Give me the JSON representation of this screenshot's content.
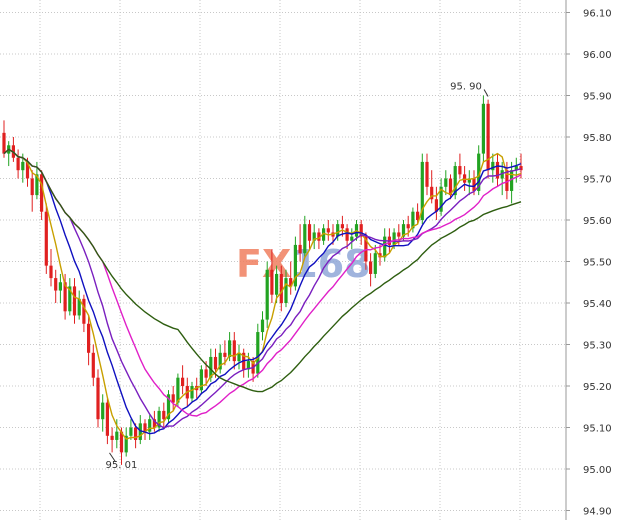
{
  "chart_data": {
    "type": "candlestick",
    "title": "",
    "xlabel": "",
    "ylabel": "",
    "ylim": [
      94.9,
      96.15
    ],
    "grid": true,
    "yticks": [
      94.9,
      95.0,
      95.1,
      95.2,
      95.3,
      95.4,
      95.5,
      95.6,
      95.7,
      95.8,
      95.9,
      96.0,
      96.1
    ],
    "ytick_labels": [
      "94.90",
      "95.00",
      "95.10",
      "95.20",
      "95.30",
      "95.40",
      "95.50",
      "95.60",
      "95.70",
      "95.80",
      "95.90",
      "96.00",
      "96.10"
    ],
    "colors": {
      "up": "#22a322",
      "down": "#e02020",
      "grid": "#c8c8c8",
      "axis": "#999999"
    },
    "watermark": {
      "text_a": "FX",
      "text_b": "168",
      "color_a": "#f08060",
      "color_b": "#90a8d8"
    },
    "annotations": [
      {
        "label": "95. 90",
        "index": 103,
        "value": 95.9
      },
      {
        "label": "95. 01",
        "index": 25,
        "value": 95.01
      }
    ],
    "candles": [
      [
        95.81,
        95.84,
        95.75,
        95.76
      ],
      [
        95.76,
        95.79,
        95.73,
        95.78
      ],
      [
        95.78,
        95.8,
        95.74,
        95.75
      ],
      [
        95.75,
        95.77,
        95.7,
        95.72
      ],
      [
        95.72,
        95.76,
        95.69,
        95.74
      ],
      [
        95.74,
        95.75,
        95.68,
        95.7
      ],
      [
        95.7,
        95.72,
        95.62,
        95.66
      ],
      [
        95.66,
        95.74,
        95.65,
        95.71
      ],
      [
        95.71,
        95.72,
        95.6,
        95.62
      ],
      [
        95.62,
        95.64,
        95.47,
        95.49
      ],
      [
        95.49,
        95.53,
        95.44,
        95.46
      ],
      [
        95.46,
        95.48,
        95.4,
        95.43
      ],
      [
        95.43,
        95.47,
        95.4,
        95.45
      ],
      [
        95.45,
        95.47,
        95.36,
        95.38
      ],
      [
        95.38,
        95.46,
        95.37,
        95.44
      ],
      [
        95.44,
        95.46,
        95.35,
        95.37
      ],
      [
        95.37,
        95.43,
        95.36,
        95.41
      ],
      [
        95.41,
        95.42,
        95.33,
        95.35
      ],
      [
        95.35,
        95.37,
        95.25,
        95.28
      ],
      [
        95.28,
        95.3,
        95.2,
        95.22
      ],
      [
        95.22,
        95.24,
        95.1,
        95.12
      ],
      [
        95.12,
        95.18,
        95.09,
        95.16
      ],
      [
        95.16,
        95.17,
        95.06,
        95.08
      ],
      [
        95.08,
        95.1,
        95.04,
        95.07
      ],
      [
        95.07,
        95.12,
        95.05,
        95.09
      ],
      [
        95.09,
        95.1,
        95.01,
        95.04
      ],
      [
        95.04,
        95.1,
        95.03,
        95.08
      ],
      [
        95.08,
        95.12,
        95.07,
        95.1
      ],
      [
        95.1,
        95.11,
        95.05,
        95.07
      ],
      [
        95.07,
        95.13,
        95.06,
        95.11
      ],
      [
        95.11,
        95.12,
        95.07,
        95.09
      ],
      [
        95.09,
        95.13,
        95.07,
        95.12
      ],
      [
        95.12,
        95.14,
        95.09,
        95.1
      ],
      [
        95.1,
        95.15,
        95.09,
        95.14
      ],
      [
        95.14,
        95.16,
        95.1,
        95.12
      ],
      [
        95.12,
        95.19,
        95.11,
        95.18
      ],
      [
        95.18,
        95.2,
        95.14,
        95.16
      ],
      [
        95.16,
        95.23,
        95.15,
        95.22
      ],
      [
        95.22,
        95.25,
        95.18,
        95.2
      ],
      [
        95.2,
        95.22,
        95.15,
        95.17
      ],
      [
        95.17,
        95.21,
        95.16,
        95.2
      ],
      [
        95.2,
        95.22,
        95.17,
        95.19
      ],
      [
        95.19,
        95.25,
        95.18,
        95.24
      ],
      [
        95.24,
        95.26,
        95.2,
        95.22
      ],
      [
        95.22,
        95.29,
        95.21,
        95.27
      ],
      [
        95.27,
        95.29,
        95.22,
        95.24
      ],
      [
        95.24,
        95.3,
        95.23,
        95.28
      ],
      [
        95.28,
        95.31,
        95.25,
        95.27
      ],
      [
        95.27,
        95.33,
        95.26,
        95.31
      ],
      [
        95.31,
        95.33,
        95.24,
        95.26
      ],
      [
        95.26,
        95.3,
        95.24,
        95.28
      ],
      [
        95.28,
        95.29,
        95.22,
        95.24
      ],
      [
        95.24,
        95.28,
        95.22,
        95.26
      ],
      [
        95.26,
        95.27,
        95.21,
        95.23
      ],
      [
        95.23,
        95.35,
        95.22,
        95.33
      ],
      [
        95.33,
        95.38,
        95.31,
        95.36
      ],
      [
        95.36,
        95.5,
        95.34,
        95.48
      ],
      [
        95.48,
        95.53,
        95.4,
        95.42
      ],
      [
        95.42,
        95.49,
        95.4,
        95.47
      ],
      [
        95.47,
        95.49,
        95.38,
        95.4
      ],
      [
        95.4,
        95.48,
        95.39,
        95.46
      ],
      [
        95.46,
        95.5,
        95.42,
        95.44
      ],
      [
        95.44,
        95.56,
        95.43,
        95.54
      ],
      [
        95.54,
        95.59,
        95.5,
        95.52
      ],
      [
        95.52,
        95.61,
        95.51,
        95.59
      ],
      [
        95.59,
        95.6,
        95.53,
        95.55
      ],
      [
        95.55,
        95.59,
        95.53,
        95.57
      ],
      [
        95.57,
        95.58,
        95.53,
        95.55
      ],
      [
        95.55,
        95.59,
        95.54,
        95.58
      ],
      [
        95.58,
        95.6,
        95.55,
        95.57
      ],
      [
        95.57,
        95.59,
        95.54,
        95.56
      ],
      [
        95.56,
        95.6,
        95.55,
        95.59
      ],
      [
        95.59,
        95.61,
        95.56,
        95.58
      ],
      [
        95.58,
        95.59,
        95.53,
        95.55
      ],
      [
        95.55,
        95.58,
        95.53,
        95.56
      ],
      [
        95.56,
        95.6,
        95.55,
        95.59
      ],
      [
        95.59,
        95.6,
        95.54,
        95.56
      ],
      [
        95.56,
        95.57,
        95.48,
        95.5
      ],
      [
        95.5,
        95.52,
        95.44,
        95.47
      ],
      [
        95.47,
        95.54,
        95.46,
        95.52
      ],
      [
        95.52,
        95.54,
        95.49,
        95.51
      ],
      [
        95.51,
        95.58,
        95.5,
        95.56
      ],
      [
        95.56,
        95.58,
        95.52,
        95.54
      ],
      [
        95.54,
        95.58,
        95.53,
        95.57
      ],
      [
        95.57,
        95.59,
        95.54,
        95.56
      ],
      [
        95.56,
        95.6,
        95.55,
        95.59
      ],
      [
        95.59,
        95.61,
        95.56,
        95.58
      ],
      [
        95.58,
        95.63,
        95.57,
        95.62
      ],
      [
        95.62,
        95.64,
        95.59,
        95.6
      ],
      [
        95.6,
        95.76,
        95.59,
        95.74
      ],
      [
        95.74,
        95.76,
        95.66,
        95.68
      ],
      [
        95.68,
        95.72,
        95.64,
        95.65
      ],
      [
        95.65,
        95.68,
        95.6,
        95.62
      ],
      [
        95.62,
        95.7,
        95.61,
        95.68
      ],
      [
        95.68,
        95.72,
        95.66,
        95.7
      ],
      [
        95.7,
        95.71,
        95.65,
        95.66
      ],
      [
        95.66,
        95.74,
        95.65,
        95.73
      ],
      [
        95.73,
        95.76,
        95.7,
        95.71
      ],
      [
        95.71,
        95.73,
        95.67,
        95.69
      ],
      [
        95.69,
        95.72,
        95.66,
        95.7
      ],
      [
        95.7,
        95.72,
        95.66,
        95.67
      ],
      [
        95.67,
        95.78,
        95.66,
        95.76
      ],
      [
        95.76,
        95.9,
        95.74,
        95.88
      ],
      [
        95.88,
        95.89,
        95.7,
        95.72
      ],
      [
        95.72,
        95.76,
        95.69,
        95.74
      ],
      [
        95.74,
        95.76,
        95.68,
        95.7
      ],
      [
        95.7,
        95.74,
        95.66,
        95.72
      ],
      [
        95.72,
        95.74,
        95.65,
        95.67
      ],
      [
        95.67,
        95.74,
        95.64,
        95.72
      ],
      [
        95.72,
        95.75,
        95.69,
        95.73
      ],
      [
        95.73,
        95.76,
        95.7,
        95.72
      ]
    ],
    "series": [
      {
        "color": "#c8a000",
        "period": 5
      },
      {
        "color": "#1010c0",
        "period": 10
      },
      {
        "color": "#7a1fbf",
        "period": 15
      },
      {
        "color": "#e020c8",
        "period": 22
      },
      {
        "color": "#2e5e10",
        "period": 38
      }
    ]
  }
}
